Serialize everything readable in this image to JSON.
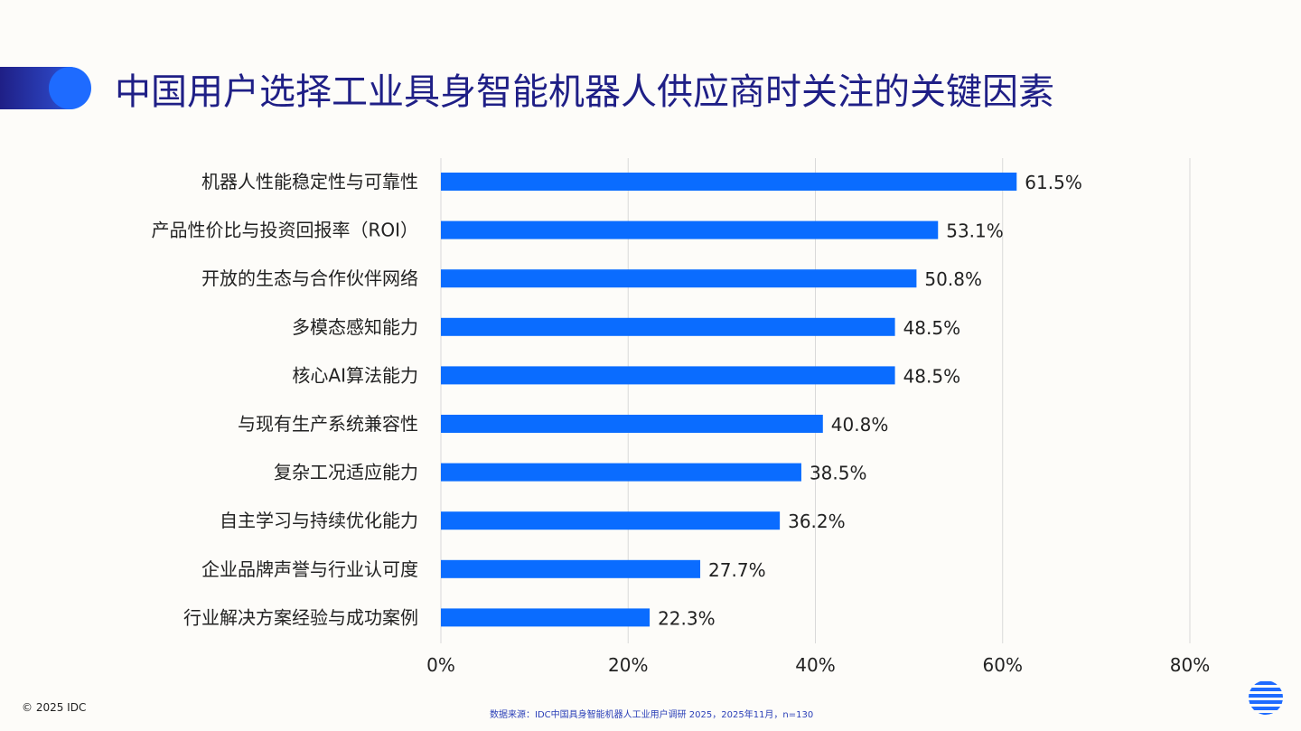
{
  "title": "中国用户选择工业具身智能机器人供应商时关注的关键因素",
  "copyright": "© 2025 IDC",
  "source": "数据来源：IDC中国具身智能机器人工业用户调研 2025，2025年11月，n=130",
  "colors": {
    "bar": "#0a6cff",
    "title": "#1f1f86",
    "grid": "#d9d9d9",
    "source": "#2a3fb8"
  },
  "icons": [
    "idc-logo-icon"
  ],
  "chart_data": {
    "type": "bar",
    "orientation": "horizontal",
    "categories": [
      "机器人性能稳定性与可靠性",
      "产品性价比与投资回报率（ROI）",
      "开放的生态与合作伙伴网络",
      "多模态感知能力",
      "核心AI算法能力",
      "与现有生产系统兼容性",
      "复杂工况适应能力",
      "自主学习与持续优化能力",
      "企业品牌声誉与行业认可度",
      "行业解决方案经验与成功案例"
    ],
    "values": [
      61.5,
      53.1,
      50.8,
      48.5,
      48.5,
      40.8,
      38.5,
      36.2,
      27.7,
      22.3
    ],
    "value_labels": [
      "61.5%",
      "53.1%",
      "50.8%",
      "48.5%",
      "48.5%",
      "40.8%",
      "38.5%",
      "36.2%",
      "27.7%",
      "22.3%"
    ],
    "x_ticks": [
      0,
      20,
      40,
      60,
      80
    ],
    "x_tick_labels": [
      "0%",
      "20%",
      "40%",
      "60%",
      "80%"
    ],
    "xlim": [
      0,
      80
    ],
    "grid": true,
    "legend": false
  }
}
